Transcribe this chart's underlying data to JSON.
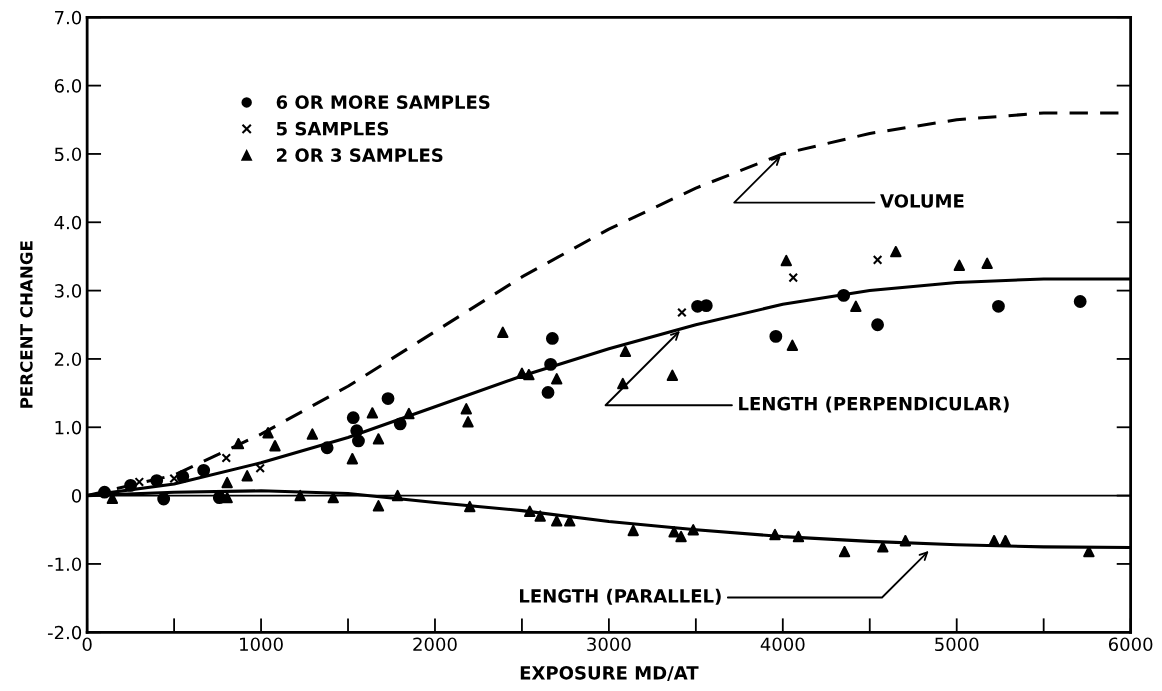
{
  "chart_data": {
    "type": "scatter",
    "xlabel": "EXPOSURE MD/AT",
    "ylabel": "PERCENT CHANGE",
    "xlim": [
      0,
      6000
    ],
    "ylim": [
      -2.0,
      7.0
    ],
    "xticks": [
      0,
      {
        "value": 500,
        "label": null
      },
      1000,
      {
        "value": 1500,
        "label": null
      },
      2000,
      {
        "value": 2500,
        "label": null
      },
      3000,
      {
        "value": 3500,
        "label": null
      },
      4000,
      {
        "value": 4500,
        "label": null
      },
      5000,
      {
        "value": 5500,
        "label": null
      },
      6000
    ],
    "yticks": [
      {
        "value": -2,
        "label": "-2.0"
      },
      {
        "value": -1,
        "label": "-1.0"
      },
      0,
      {
        "value": 1,
        "label": "1.0"
      },
      {
        "value": 2,
        "label": "2.0"
      },
      {
        "value": 3,
        "label": "3.0"
      },
      {
        "value": 4,
        "label": "4.0"
      },
      {
        "value": 5,
        "label": "5.0"
      },
      {
        "value": 6,
        "label": "6.0"
      },
      {
        "value": 7,
        "label": "7.0"
      }
    ],
    "grid": false,
    "legend": "top left",
    "ref_lines": [
      {
        "axis": "y",
        "value": 0,
        "color": "#000000",
        "line_style": "solid"
      }
    ],
    "series": [
      {
        "type": "line",
        "line_style": "dashed",
        "color": "#000000",
        "x": [
          0,
          500,
          1000,
          1500,
          2000,
          2500,
          3000,
          3500,
          4000,
          4500,
          5000,
          5500,
          6000
        ],
        "values": [
          0,
          0.3,
          0.9,
          1.6,
          2.4,
          3.2,
          3.9,
          4.5,
          5.0,
          5.3,
          5.5,
          5.6,
          5.6
        ]
      },
      {
        "type": "line",
        "line_style": "solid",
        "color": "#000000",
        "x": [
          0,
          500,
          1000,
          1500,
          2000,
          2500,
          3000,
          3500,
          4000,
          4500,
          5000,
          5500,
          6000
        ],
        "values": [
          0,
          0.17,
          0.48,
          0.85,
          1.3,
          1.75,
          2.15,
          2.5,
          2.8,
          3.0,
          3.12,
          3.17,
          3.17
        ]
      },
      {
        "type": "line",
        "line_style": "solid",
        "color": "#000000",
        "x": [
          0,
          500,
          1000,
          1500,
          2000,
          2500,
          3000,
          3500,
          4000,
          4500,
          5000,
          5500,
          6000
        ],
        "values": [
          0,
          0.05,
          0.07,
          0.03,
          -0.1,
          -0.22,
          -0.38,
          -0.5,
          -0.6,
          -0.67,
          -0.72,
          -0.75,
          -0.76
        ]
      },
      {
        "name": "6 OR MORE SAMPLES",
        "marker": "circle",
        "color": "#000000",
        "x": [
          100,
          250,
          400,
          550,
          670,
          440,
          760,
          1380,
          1530,
          1550,
          1560,
          1730,
          1800,
          2650,
          2665,
          2675,
          3510,
          3560,
          3960,
          4350,
          4545,
          5240,
          5710
        ],
        "values": [
          0.05,
          0.15,
          0.22,
          0.28,
          0.37,
          -0.05,
          -0.03,
          0.7,
          1.14,
          0.95,
          0.8,
          1.42,
          1.05,
          1.51,
          1.92,
          2.3,
          2.77,
          2.78,
          2.33,
          2.93,
          2.5,
          2.77,
          2.84
        ]
      },
      {
        "name": "5 SAMPLES",
        "marker": "cross",
        "color": "#000000",
        "x": [
          300,
          500,
          800,
          995,
          3420,
          4060,
          4545
        ],
        "values": [
          0.2,
          0.25,
          0.55,
          0.4,
          2.68,
          3.19,
          3.45
        ]
      },
      {
        "name": "2 OR 3 SAMPLES",
        "marker": "triangle",
        "color": "#000000",
        "x": [
          145,
          805,
          920,
          870,
          1040,
          1080,
          1295,
          1525,
          1640,
          1675,
          1850,
          2180,
          2190,
          2390,
          2500,
          2540,
          2700,
          3080,
          3095,
          3365,
          4020,
          4055,
          4420,
          4650,
          5015,
          5175,
          805,
          1225,
          1415,
          1675,
          1785,
          2200,
          2545,
          2605,
          2700,
          2775,
          3140,
          3375,
          3415,
          3485,
          3955,
          4090,
          4355,
          4575,
          4705,
          5215,
          5280,
          5760
        ],
        "values": [
          -0.04,
          0.19,
          0.29,
          0.76,
          0.92,
          0.73,
          0.9,
          0.54,
          1.21,
          0.83,
          1.2,
          1.27,
          1.08,
          2.39,
          1.79,
          1.77,
          1.71,
          1.64,
          2.11,
          1.76,
          3.44,
          2.2,
          2.77,
          3.57,
          3.37,
          3.4,
          -0.03,
          0.0,
          -0.03,
          -0.15,
          0.0,
          -0.16,
          -0.23,
          -0.3,
          -0.37,
          -0.37,
          -0.51,
          -0.53,
          -0.6,
          -0.5,
          -0.57,
          -0.6,
          -0.82,
          -0.75,
          -0.66,
          -0.66,
          -0.66,
          -0.82
        ]
      }
    ],
    "annotations": [
      {
        "text": "VOLUME",
        "x": 4000,
        "y": 5.0
      },
      {
        "text": "LENGTH (PERPENDICULAR)",
        "x": 3420,
        "y": 2.44
      },
      {
        "text": "LENGTH (PARALLEL)",
        "x": 4850,
        "y": -0.78
      }
    ]
  }
}
